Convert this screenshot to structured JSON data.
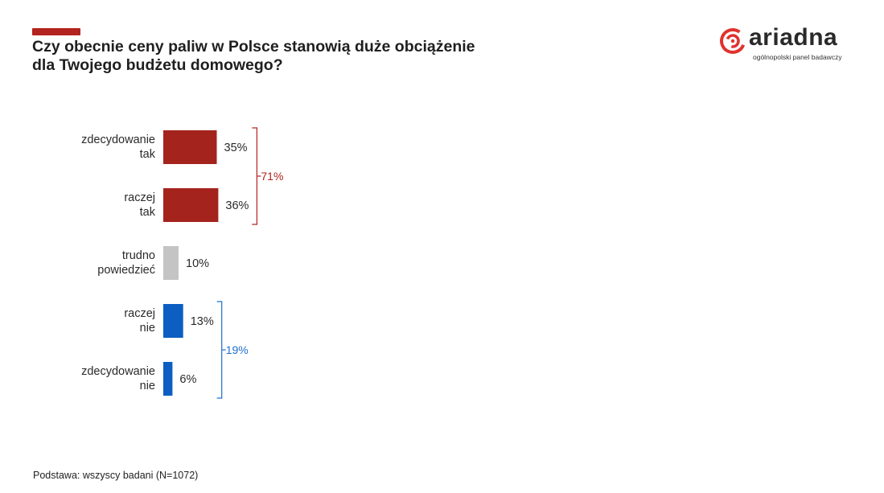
{
  "header": {
    "title_line1": "Czy obecnie ceny paliw w Polsce stanowią duże obciążenie",
    "title_line2": "dla Twojego budżetu domowego?"
  },
  "logo": {
    "name": "ariadna",
    "tagline": "ogólnopolski panel badawczy",
    "icon": "ariadna-logo-icon",
    "color": "#e0322d"
  },
  "footer": {
    "base_note": "Podstawa: wszyscy badani (N=1072)"
  },
  "chart_data": {
    "type": "bar",
    "orientation": "horizontal",
    "categories": [
      [
        "zdecydowanie",
        "tak"
      ],
      [
        "raczej",
        "tak"
      ],
      [
        "trudno",
        "powiedzieć"
      ],
      [
        "raczej",
        "nie"
      ],
      [
        "zdecydowanie",
        "nie"
      ]
    ],
    "values": [
      35,
      36,
      10,
      13,
      6
    ],
    "value_labels": [
      "35%",
      "36%",
      "10%",
      "13%",
      "6%"
    ],
    "colors": [
      "#a4231d",
      "#a4231d",
      "#c4c4c4",
      "#0c5ec2",
      "#0c5ec2"
    ],
    "groups": [
      {
        "from": 0,
        "to": 1,
        "label": "71%",
        "color": "#b3231f"
      },
      {
        "from": 3,
        "to": 4,
        "label": "19%",
        "color": "#1f6fd0"
      }
    ]
  }
}
